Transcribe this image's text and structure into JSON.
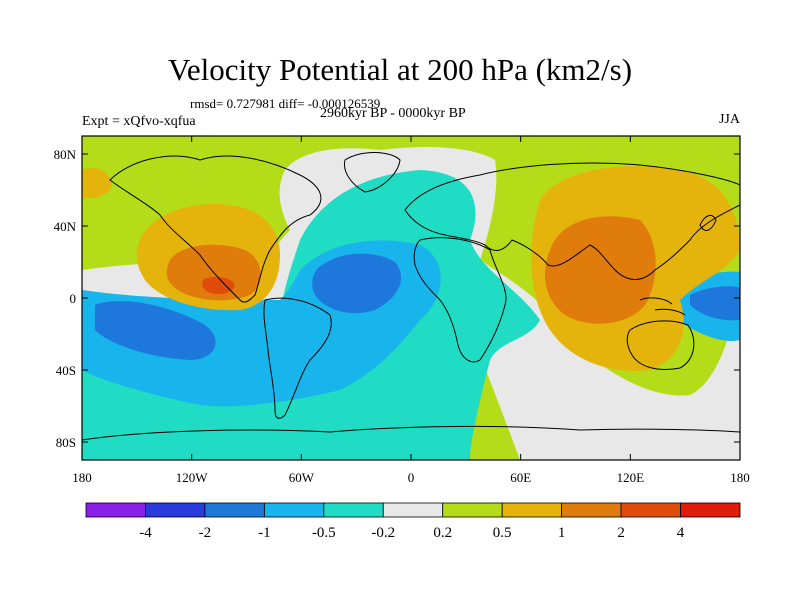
{
  "title": "Velocity Potential at 200 hPa (km2/s)",
  "stats": "rmsd= 0.727981 diff= -0.000126539",
  "period": "2960kyr BP - 0000kyr BP",
  "experiment": "Expt = xQfvo-xqfua",
  "season": "JJA",
  "map": {
    "projection": "equirectangular",
    "lon_range": [
      -180,
      180
    ],
    "lat_range": [
      -90,
      90
    ],
    "x_ticks": [
      "180",
      "120W",
      "60W",
      "0",
      "60E",
      "120E",
      "180"
    ],
    "y_ticks": [
      "80N",
      "40N",
      "0",
      "40S",
      "80S"
    ]
  },
  "colorbar": {
    "levels": [
      "-4",
      "-2",
      "-1",
      "-0.5",
      "-0.2",
      "0.2",
      "0.5",
      "1",
      "2",
      "4"
    ],
    "colors": [
      "#8a1fe8",
      "#2a3adc",
      "#1e78dc",
      "#18b4ec",
      "#20dcc4",
      "#e8e8e8",
      "#b4dc18",
      "#e4b40c",
      "#e07c0c",
      "#e04c0c",
      "#e01c0c"
    ]
  },
  "field_colors": {
    "background": "#b4dc18",
    "neutral": "#e8e8e8",
    "neg_weak": "#20dcc4",
    "neg_mid": "#18b4ec",
    "neg_strong": "#1e78dc",
    "pos_mid": "#e4b40c",
    "pos_strong": "#e07c0c",
    "pos_max": "#e04c0c"
  }
}
